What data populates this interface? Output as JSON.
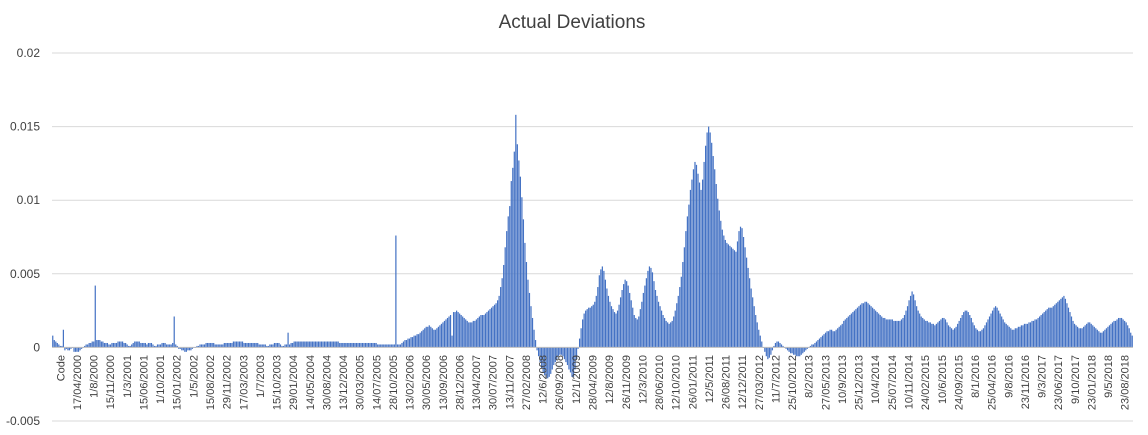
{
  "chart_data": {
    "type": "bar",
    "title": "Actual Deviations",
    "xlabel": "",
    "ylabel": "",
    "ylim": [
      -0.005,
      0.02
    ],
    "yticks": [
      {
        "value": 0.02,
        "label": "0.02"
      },
      {
        "value": 0.015,
        "label": "0.015"
      },
      {
        "value": 0.01,
        "label": "0.01"
      },
      {
        "value": 0.005,
        "label": "0.005"
      },
      {
        "value": 0,
        "label": "0"
      },
      {
        "value": -0.005,
        "label": "-0.005"
      }
    ],
    "gridlines": true,
    "bar_color": "#4472c4",
    "x_tick_labels": [
      "Code",
      "17/04/2000",
      "1/8/2000",
      "15/11/2000",
      "1/3/2001",
      "15/06/2001",
      "1/10/2001",
      "15/01/2002",
      "1/5/2002",
      "15/08/2002",
      "29/11/2002",
      "17/03/2003",
      "1/7/2003",
      "15/10/2003",
      "29/01/2004",
      "14/05/2004",
      "30/08/2004",
      "13/12/2004",
      "30/03/2005",
      "14/07/2005",
      "28/10/2005",
      "13/02/2006",
      "30/05/2006",
      "13/09/2006",
      "28/12/2006",
      "13/04/2007",
      "30/07/2007",
      "13/11/2007",
      "27/02/2008",
      "12/6/2008",
      "26/09/2008",
      "12/1/2009",
      "28/04/2009",
      "12/8/2009",
      "26/11/2009",
      "12/3/2010",
      "28/06/2010",
      "12/10/2010",
      "26/01/2011",
      "12/5/2011",
      "26/08/2011",
      "12/12/2011",
      "27/03/2012",
      "11/7/2012",
      "25/10/2012",
      "8/2/2013",
      "27/05/2013",
      "10/9/2013",
      "25/12/2013",
      "10/4/2014",
      "25/07/2014",
      "10/11/2014",
      "24/02/2015",
      "10/6/2015",
      "24/09/2015",
      "8/1/2016",
      "25/04/2016",
      "9/8/2016",
      "23/11/2016",
      "9/3/2017",
      "23/06/2017",
      "9/10/2017",
      "23/01/2018",
      "9/5/2018",
      "23/08/2018"
    ],
    "values": [
      0.0008,
      0.0005,
      0.0004,
      0.0003,
      0.0002,
      0.0001,
      0.0001,
      -0.0002,
      -0.0002,
      -0.0001,
      -0.0002,
      -0.0002,
      -0.0001,
      0,
      -0.0003,
      -0.0003,
      -0.0003,
      -0.0003,
      -0.0002,
      -0.0001,
      0,
      0.0001,
      0.0002,
      0.0002,
      0.0003,
      0.0003,
      0.0004,
      0.0004,
      0.0004,
      0.0005,
      0.0005,
      0.0005,
      0.0004,
      0.0004,
      0.0003,
      0.0003,
      0.0003,
      0.0002,
      0.0002,
      0.0003,
      0.0003,
      0.0003,
      0.0003,
      0.0004,
      0.0004,
      0.0004,
      0.0004,
      0.0003,
      0.0003,
      0.0002,
      0.0001,
      0.0001,
      0.0002,
      0.0003,
      0.0004,
      0.0004,
      0.0004,
      0.0004,
      0.0003,
      0.0003,
      0.0003,
      0.0003,
      0.0002,
      0.0003,
      0.0003,
      0.0003,
      0.0002,
      0.0001,
      0.0001,
      0.0002,
      0.0002,
      0.0002,
      0.0003,
      0.0003,
      0.0003,
      0.0002,
      0.0002,
      0.0002,
      0.0002,
      0.0003,
      0.0003,
      0.0002,
      0.0001,
      -0.0001,
      -0.0001,
      -0.0002,
      -0.0002,
      -0.0003,
      -0.0003,
      -0.0002,
      -0.0002,
      -0.0002,
      -0.0001,
      0,
      0,
      0.0001,
      0.0001,
      0.0002,
      0.0002,
      0.0002,
      0.0002,
      0.0003,
      0.0003,
      0.0003,
      0.0003,
      0.0003,
      0.0003,
      0.0002,
      0.0002,
      0.0002,
      0.0002,
      0.0002,
      0.0002,
      0.0003,
      0.0003,
      0.0003,
      0.0003,
      0.0003,
      0.0003,
      0.0004,
      0.0004,
      0.0004,
      0.0004,
      0.0004,
      0.0004,
      0.0004,
      0.0003,
      0.0003,
      0.0003,
      0.0003,
      0.0003,
      0.0003,
      0.0003,
      0.0003,
      0.0003,
      0.0003,
      0.0002,
      0.0002,
      0.0002,
      0.0002,
      0.0002,
      0.0001,
      0.0001,
      0.0002,
      0.0002,
      0.0002,
      0.0003,
      0.0003,
      0.0003,
      0.0003,
      0.0002,
      0.0001,
      0.0001,
      0.0002,
      0.0002,
      0.0002,
      0.0002,
      0.0003,
      0.0003,
      0.0004,
      0.0004,
      0.0004,
      0.0004,
      0.0004,
      0.0004,
      0.0004,
      0.0004,
      0.0004,
      0.0004,
      0.0004,
      0.0004,
      0.0004,
      0.0004,
      0.0004,
      0.0004,
      0.0004,
      0.0004,
      0.0004,
      0.0004,
      0.0004,
      0.0004,
      0.0004,
      0.0004,
      0.0004,
      0.0004,
      0.0004,
      0.0004,
      0.0004,
      0.0004,
      0.0003,
      0.0003,
      0.0003,
      0.0003,
      0.0003,
      0.0003,
      0.0003,
      0.0003,
      0.0003,
      0.0003,
      0.0003,
      0.0003,
      0.0003,
      0.0003,
      0.0003,
      0.0003,
      0.0003,
      0.0003,
      0.0003,
      0.0003,
      0.0003,
      0.0003,
      0.0003,
      0.0003,
      0.0003,
      0.0002,
      0.0002,
      0.0002,
      0.0002,
      0.0002,
      0.0002,
      0.0002,
      0.0002,
      0.0002,
      0.0002,
      0.0002,
      0.0002,
      0.0002,
      0.0002,
      0.0002,
      0.0002,
      0.0003,
      0.0004,
      0.0005,
      0.0005,
      0.0006,
      0.0006,
      0.0007,
      0.0007,
      0.0008,
      0.0008,
      0.0009,
      0.0009,
      0.001,
      0.0011,
      0.0012,
      0.0013,
      0.0014,
      0.0014,
      0.0015,
      0.0014,
      0.0013,
      0.0012,
      0.0012,
      0.0013,
      0.0014,
      0.0015,
      0.0016,
      0.0017,
      0.0018,
      0.0019,
      0.002,
      0.0021,
      0.0022,
      0.0023,
      0.0024,
      0.0024,
      0.0025,
      0.0024,
      0.0023,
      0.0022,
      0.0021,
      0.002,
      0.0019,
      0.0018,
      0.0017,
      0.0017,
      0.0017,
      0.0018,
      0.0018,
      0.0019,
      0.002,
      0.0021,
      0.0022,
      0.0022,
      0.0022,
      0.0023,
      0.0024,
      0.0025,
      0.0026,
      0.0027,
      0.0028,
      0.0029,
      0.003,
      0.0032,
      0.0035,
      0.0041,
      0.0047,
      0.0056,
      0.0068,
      0.0079,
      0.0089,
      0.0096,
      0.0113,
      0.0122,
      0.0133,
      0.0158,
      0.0138,
      0.0127,
      0.0116,
      0.0102,
      0.0087,
      0.0071,
      0.0058,
      0.0046,
      0.0037,
      0.0028,
      0.002,
      0.0012,
      0.0005,
      -0.0002,
      -0.0006,
      -0.001,
      -0.0014,
      -0.0017,
      -0.0019,
      -0.0021,
      -0.0021,
      -0.002,
      -0.0018,
      -0.0015,
      -0.0012,
      -0.001,
      -0.0008,
      -0.0006,
      -0.0005,
      -0.0005,
      -0.0006,
      -0.0008,
      -0.001,
      -0.0012,
      -0.0015,
      -0.0017,
      -0.002,
      -0.002,
      -0.0015,
      -0.0008,
      -0.0001,
      0.0006,
      0.0013,
      0.0019,
      0.0023,
      0.0025,
      0.0026,
      0.0027,
      0.0027,
      0.0028,
      0.0029,
      0.0031,
      0.0035,
      0.0041,
      0.0049,
      0.0053,
      0.0055,
      0.0052,
      0.0046,
      0.004,
      0.0035,
      0.0031,
      0.0028,
      0.0026,
      0.0024,
      0.0023,
      0.0025,
      0.0029,
      0.0034,
      0.0039,
      0.0043,
      0.0046,
      0.0045,
      0.0042,
      0.0037,
      0.0032,
      0.0027,
      0.0022,
      0.002,
      0.0019,
      0.0021,
      0.0026,
      0.0031,
      0.0037,
      0.0042,
      0.0047,
      0.0052,
      0.0055,
      0.0054,
      0.0051,
      0.0045,
      0.0039,
      0.0035,
      0.0031,
      0.0028,
      0.0025,
      0.0022,
      0.002,
      0.0018,
      0.0017,
      0.0016,
      0.0017,
      0.0018,
      0.0021,
      0.0025,
      0.003,
      0.0035,
      0.0041,
      0.0048,
      0.0058,
      0.0068,
      0.0079,
      0.0089,
      0.0097,
      0.0107,
      0.0114,
      0.0121,
      0.0126,
      0.0124,
      0.0118,
      0.0112,
      0.0107,
      0.0114,
      0.0126,
      0.0137,
      0.0146,
      0.015,
      0.0146,
      0.0139,
      0.013,
      0.0121,
      0.0111,
      0.0101,
      0.0093,
      0.0086,
      0.008,
      0.0076,
      0.0073,
      0.0071,
      0.007,
      0.0069,
      0.0068,
      0.0067,
      0.0066,
      0.0065,
      0.0072,
      0.0079,
      0.0082,
      0.0081,
      0.0075,
      0.0068,
      0.0061,
      0.0054,
      0.0047,
      0.004,
      0.0034,
      0.0028,
      0.0022,
      0.0017,
      0.0012,
      0.0008,
      0.0004,
      0,
      -0.0003,
      -0.0006,
      -0.0008,
      -0.0007,
      -0.0005,
      -0.0002,
      0.0001,
      0.0003,
      0.0004,
      0.0004,
      0.0003,
      0.0002,
      0.0001,
      0,
      -0.0001,
      -0.0002,
      -0.0003,
      -0.0004,
      -0.0004,
      -0.0005,
      -0.0005,
      -0.0006,
      -0.0006,
      -0.0006,
      -0.0005,
      -0.0004,
      -0.0003,
      -0.0002,
      -0.0001,
      0,
      0.0001,
      0.0002,
      0.0002,
      0.0003,
      0.0004,
      0.0005,
      0.0006,
      0.0007,
      0.0008,
      0.0009,
      0.001,
      0.0011,
      0.0011,
      0.0012,
      0.0012,
      0.0011,
      0.0011,
      0.0012,
      0.0013,
      0.0014,
      0.0015,
      0.0016,
      0.0018,
      0.0019,
      0.002,
      0.0021,
      0.0022,
      0.0023,
      0.0024,
      0.0025,
      0.0026,
      0.0027,
      0.0028,
      0.0029,
      0.003,
      0.003,
      0.0031,
      0.0031,
      0.003,
      0.0029,
      0.0028,
      0.0027,
      0.0026,
      0.0025,
      0.0024,
      0.0023,
      0.0022,
      0.0021,
      0.002,
      0.002,
      0.0019,
      0.0019,
      0.0019,
      0.0019,
      0.0019,
      0.0018,
      0.0018,
      0.0018,
      0.0018,
      0.0018,
      0.0019,
      0.002,
      0.0022,
      0.0025,
      0.0028,
      0.0032,
      0.0035,
      0.0038,
      0.0036,
      0.0032,
      0.0028,
      0.0025,
      0.0023,
      0.0021,
      0.002,
      0.0019,
      0.0018,
      0.0018,
      0.0017,
      0.0017,
      0.0016,
      0.0016,
      0.0015,
      0.0016,
      0.0017,
      0.0018,
      0.0019,
      0.002,
      0.002,
      0.0019,
      0.0017,
      0.0015,
      0.0014,
      0.0013,
      0.0012,
      0.0013,
      0.0014,
      0.0016,
      0.0018,
      0.002,
      0.0022,
      0.0024,
      0.0025,
      0.0025,
      0.0024,
      0.0022,
      0.002,
      0.0017,
      0.0015,
      0.0013,
      0.0012,
      0.0011,
      0.0011,
      0.0012,
      0.0013,
      0.0015,
      0.0017,
      0.0019,
      0.0021,
      0.0023,
      0.0025,
      0.0027,
      0.0028,
      0.0027,
      0.0025,
      0.0023,
      0.0021,
      0.0019,
      0.0017,
      0.0016,
      0.0015,
      0.0014,
      0.0013,
      0.0012,
      0.0012,
      0.0013,
      0.0013,
      0.0014,
      0.0014,
      0.0015,
      0.0015,
      0.0016,
      0.0016,
      0.0016,
      0.0017,
      0.0017,
      0.0018,
      0.0018,
      0.0019,
      0.0019,
      0.002,
      0.0021,
      0.0022,
      0.0023,
      0.0024,
      0.0025,
      0.0026,
      0.0027,
      0.0027,
      0.0027,
      0.0028,
      0.0029,
      0.003,
      0.0031,
      0.0032,
      0.0033,
      0.0034,
      0.0035,
      0.0033,
      0.003,
      0.0027,
      0.0024,
      0.0021,
      0.0018,
      0.0016,
      0.0015,
      0.0014,
      0.0013,
      0.0013,
      0.0013,
      0.0014,
      0.0015,
      0.0016,
      0.0017,
      0.0017,
      0.0016,
      0.0015,
      0.0014,
      0.0013,
      0.0012,
      0.0011,
      0.001,
      0.001,
      0.0011,
      0.0012,
      0.0013,
      0.0014,
      0.0015,
      0.0016,
      0.0017,
      0.0018,
      0.0018,
      0.0019,
      0.002,
      0.002,
      0.002,
      0.0019,
      0.0018,
      0.0017,
      0.0015,
      0.0013,
      0.001,
      0.0008
    ],
    "spikes": [
      {
        "index": 7,
        "value": 0.0012
      },
      {
        "index": 28,
        "value": 0.0042
      },
      {
        "index": 80,
        "value": 0.0021
      },
      {
        "index": 155,
        "value": 0.001
      },
      {
        "index": 226,
        "value": 0.0076
      },
      {
        "index": 263,
        "value": 0.0008
      }
    ]
  }
}
